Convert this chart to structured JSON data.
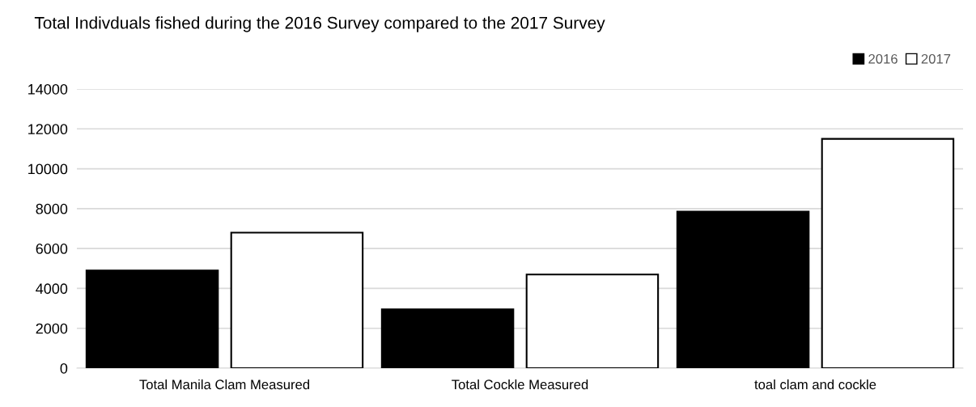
{
  "chart_data": {
    "type": "bar",
    "title": "Total Indivduals fished during the 2016 Survey compared to the 2017 Survey",
    "categories": [
      "Total Manila Clam Measured",
      "Total Cockle Measured",
      "toal clam and cockle"
    ],
    "series": [
      {
        "name": "2016",
        "color": "#000000",
        "values": [
          4900,
          2950,
          7850
        ]
      },
      {
        "name": "2017",
        "color": "#ffffff",
        "values": [
          6800,
          4700,
          11500
        ]
      }
    ],
    "ylim": [
      0,
      14000
    ],
    "yticks": [
      0,
      2000,
      4000,
      6000,
      8000,
      10000,
      12000,
      14000
    ],
    "grid": "y",
    "legend": "top right"
  }
}
